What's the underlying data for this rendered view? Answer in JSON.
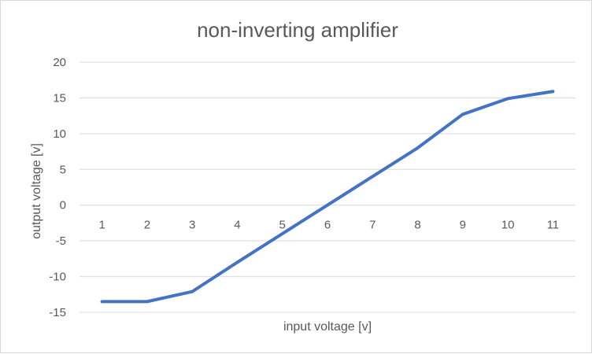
{
  "chart_data": {
    "type": "line",
    "title": "non-inverting amplifier",
    "xlabel": "input voltage [v]",
    "ylabel": "output voltage [v]",
    "categories": [
      "1",
      "2",
      "3",
      "4",
      "5",
      "6",
      "7",
      "8",
      "9",
      "10",
      "11"
    ],
    "series": [
      {
        "values": [
          -13.5,
          -13.5,
          -12.1,
          -8.0,
          -4.0,
          0.0,
          4.0,
          8.0,
          12.7,
          14.9,
          15.9
        ],
        "color": "#4472c4"
      }
    ],
    "ylim": [
      -15,
      20
    ],
    "yticks": [
      "20",
      "15",
      "10",
      "5",
      "0",
      "-5",
      "-10",
      "-15"
    ],
    "grid": true,
    "legend": "none"
  }
}
